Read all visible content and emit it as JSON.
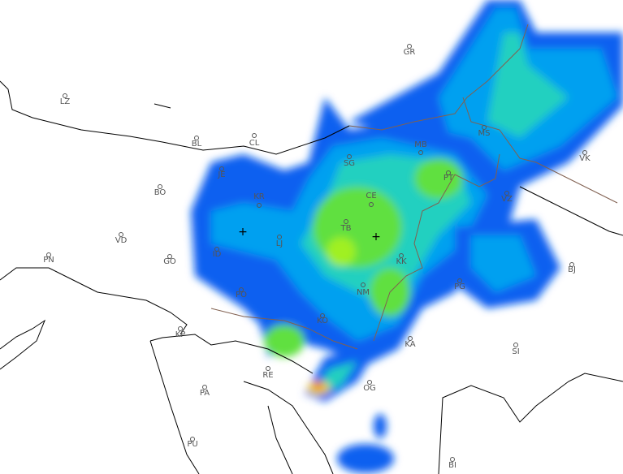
{
  "map": {
    "cities": [
      {
        "code": "GR"
      },
      {
        "code": "LZ"
      },
      {
        "code": "BL"
      },
      {
        "code": "CL"
      },
      {
        "code": "JE"
      },
      {
        "code": "SG"
      },
      {
        "code": "MB"
      },
      {
        "code": "MS"
      },
      {
        "code": "VK"
      },
      {
        "code": "PT"
      },
      {
        "code": "BO"
      },
      {
        "code": "KR"
      },
      {
        "code": "CE"
      },
      {
        "code": "VZ"
      },
      {
        "code": "TB"
      },
      {
        "code": "VD"
      },
      {
        "code": "LJ"
      },
      {
        "code": "ID"
      },
      {
        "code": "PN"
      },
      {
        "code": "GO"
      },
      {
        "code": "KK"
      },
      {
        "code": "BJ"
      },
      {
        "code": "PG"
      },
      {
        "code": "NM"
      },
      {
        "code": "PO"
      },
      {
        "code": "KP"
      },
      {
        "code": "KO"
      },
      {
        "code": "KA"
      },
      {
        "code": "SI"
      },
      {
        "code": "RE"
      },
      {
        "code": "PA"
      },
      {
        "code": "OG"
      },
      {
        "code": "PU"
      },
      {
        "code": "BI"
      }
    ],
    "radar_sites": [
      "radar-site-west",
      "radar-site-east"
    ],
    "colors": {
      "coastline": "#000000",
      "border": "#806050",
      "rain_levels": [
        "#1060f0",
        "#00a0f0",
        "#20d0c0",
        "#60e040",
        "#c0f000",
        "#f0d000",
        "#f03000"
      ]
    }
  }
}
